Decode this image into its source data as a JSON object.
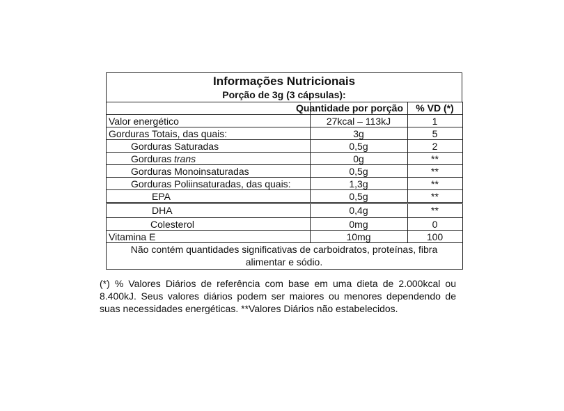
{
  "header": {
    "title": "Informações Nutricionais",
    "serving": "Porção de 3g (3 cápsulas):"
  },
  "table": {
    "columns": [
      "Quantidade por porção",
      "% VD (*)"
    ],
    "rows": [
      {
        "label": "Valor energético",
        "quantity": "27kcal – 113kJ",
        "vd": "1"
      },
      {
        "label": "Gorduras Totais, das quais:",
        "quantity": "3g",
        "vd": "5"
      },
      {
        "label": "Gorduras Saturadas",
        "quantity": "0,5g",
        "vd": "2"
      },
      {
        "label": "Gorduras",
        "label_italic": "trans",
        "quantity": "0g",
        "vd": "**"
      },
      {
        "label": "Gorduras Monoinsaturadas",
        "quantity": "0,5g",
        "vd": "**"
      },
      {
        "label": "Gorduras Poliinsaturadas, das quais:",
        "quantity": "1,3g",
        "vd": "**"
      },
      {
        "label": "EPA",
        "quantity": "0,5g",
        "vd": "**"
      },
      {
        "label": "DHA",
        "quantity": "0,4g",
        "vd": "**"
      },
      {
        "label": "Colesterol",
        "quantity": "0mg",
        "vd": "0"
      },
      {
        "label": "Vitamina E",
        "quantity": "10mg",
        "vd": "100"
      }
    ],
    "note": "Não contém quantidades significativas de carboidratos, proteínas, fibra alimentar e sódio."
  },
  "footnote": "(*) % Valores Diários de referência com base em uma dieta de 2.000kcal ou 8.400kJ. Seus valores diários podem ser maiores ou menores dependendo de suas necessidades energéticas. **Valores Diários não estabelecidos."
}
